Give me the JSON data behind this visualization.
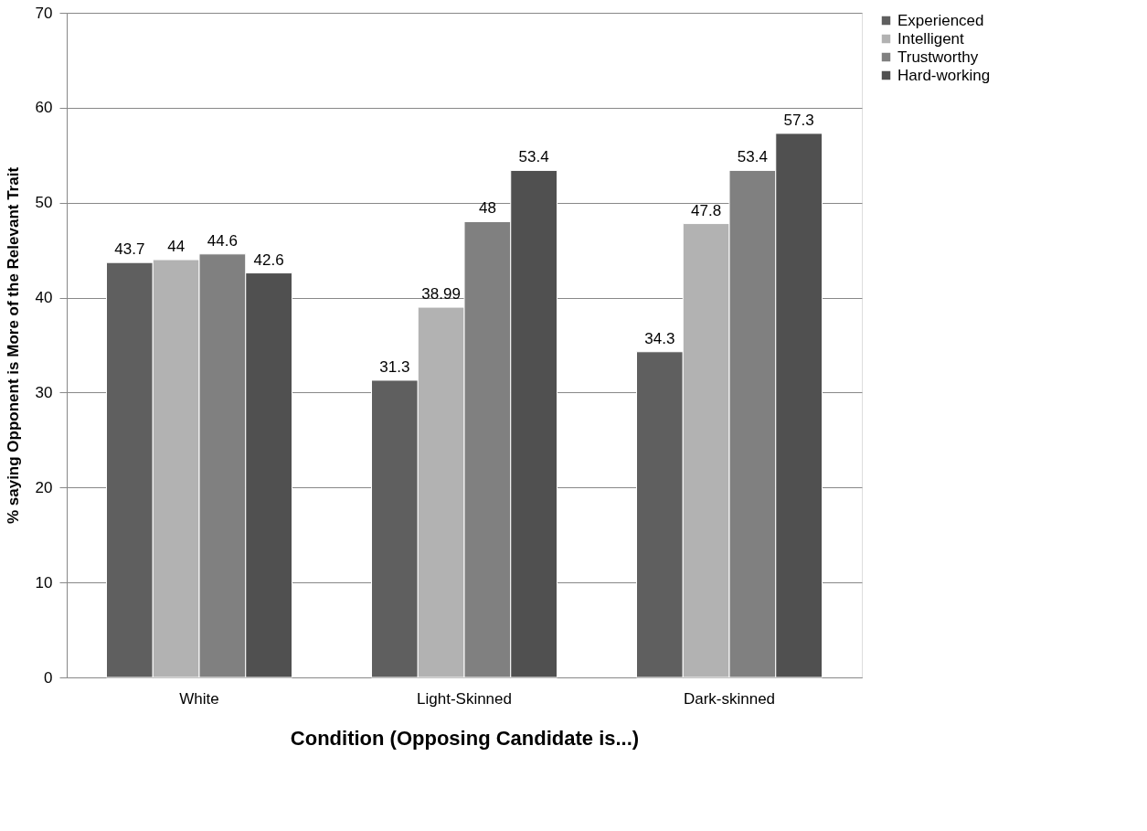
{
  "chart_data": {
    "type": "bar",
    "xlabel": "Condition (Opposing Candidate is...)",
    "ylabel": "% saying Opponent is More of the Relevant Trait",
    "categories": [
      "White",
      "Light-Skinned",
      "Dark-skinned"
    ],
    "series": [
      {
        "name": "Experienced",
        "color": "#5f5f5f",
        "values": [
          43.7,
          31.3,
          34.3
        ]
      },
      {
        "name": "Intelligent",
        "color": "#b2b2b2",
        "values": [
          44,
          38.99,
          47.8
        ]
      },
      {
        "name": "Trustworthy",
        "color": "#808080",
        "values": [
          44.6,
          48,
          53.4
        ]
      },
      {
        "name": "Hard-working",
        "color": "#505050",
        "values": [
          42.6,
          53.4,
          57.3
        ]
      }
    ],
    "ylim": [
      0,
      70
    ],
    "yticks": [
      0,
      10,
      20,
      30,
      40,
      50,
      60,
      70
    ],
    "grid": "y",
    "legend": "right",
    "data_labels": true
  }
}
